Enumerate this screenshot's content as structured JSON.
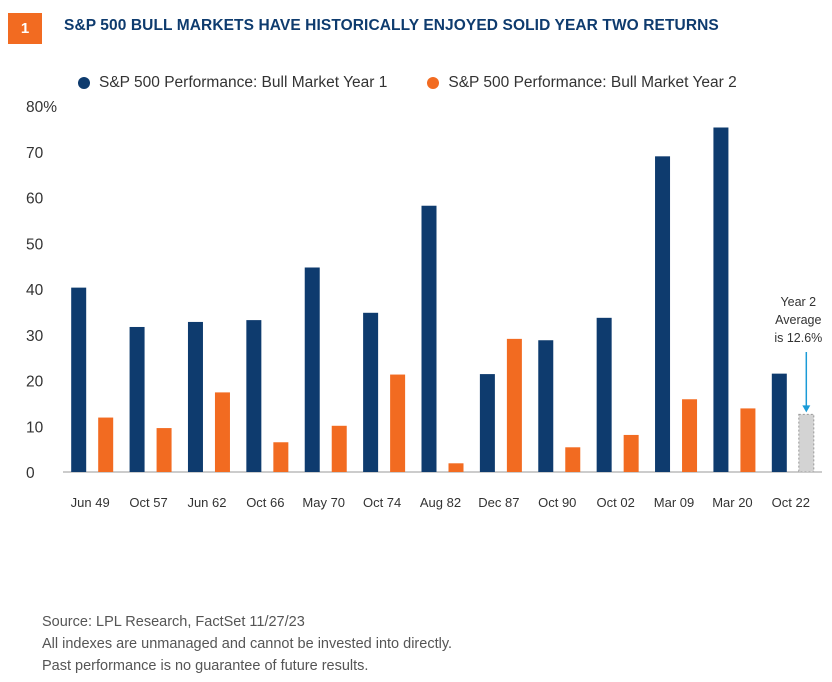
{
  "header": {
    "figure_number": "1",
    "title": "S&P 500 BULL MARKETS HAVE HISTORICALLY ENJOYED SOLID YEAR TWO RETURNS"
  },
  "colors": {
    "year1": "#0e3b6e",
    "year2": "#f26b21",
    "badge": "#f26b21",
    "avg_bar": "#d3d3d3",
    "arrow": "#1a9bd7"
  },
  "chart_data": {
    "type": "bar",
    "categories": [
      "Jun 49",
      "Oct 57",
      "Jun 62",
      "Oct 66",
      "May 70",
      "Oct 74",
      "Aug 82",
      "Dec 87",
      "Oct 90",
      "Oct 02",
      "Mar 09",
      "Mar 20",
      "Oct 22"
    ],
    "series": [
      {
        "name": "S&P 500 Performance: Bull Market Year 1",
        "values": [
          40.3,
          31.7,
          32.8,
          33.2,
          44.7,
          34.8,
          58.2,
          21.4,
          28.8,
          33.7,
          69.0,
          75.3,
          21.5
        ]
      },
      {
        "name": "S&P 500 Performance: Bull Market Year 2",
        "values": [
          11.9,
          9.6,
          17.4,
          6.5,
          10.1,
          21.3,
          1.9,
          29.1,
          5.4,
          8.1,
          15.9,
          13.9,
          null
        ]
      }
    ],
    "average_marker": {
      "category": "Oct 22",
      "value": 12.6,
      "label_lines": [
        "Year 2",
        "Average",
        "is 12.6%"
      ]
    },
    "ylim": [
      0,
      80
    ],
    "yticks": [
      "0",
      "10",
      "20",
      "30",
      "40",
      "50",
      "60",
      "70",
      "80%"
    ],
    "legend_position": "top-left",
    "grid": false
  },
  "footer": {
    "source": "Source: LPL Research, FactSet  11/27/23",
    "disclaimer1": "All indexes are unmanaged and cannot be invested into directly.",
    "disclaimer2": "Past performance is no guarantee of future results."
  }
}
